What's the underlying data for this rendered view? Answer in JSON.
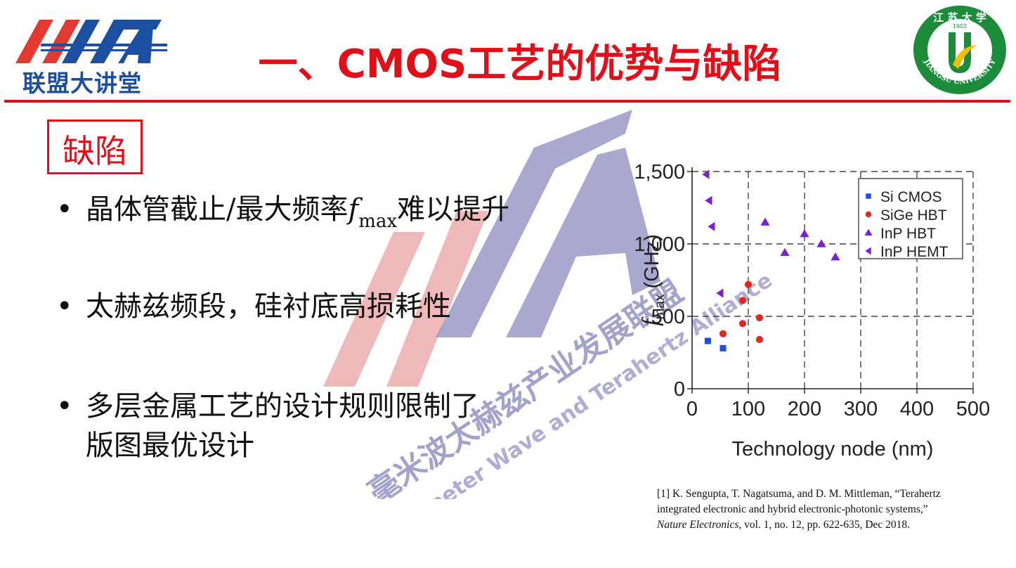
{
  "header": {
    "title": "一、CMOS工艺的优势与缺陷",
    "logo_text": "联盟大讲堂",
    "seal_text": "JIANGSU UNIVERSITY",
    "seal_year": "1902",
    "seal_top_text": "江 苏 大 学"
  },
  "section": {
    "label": "缺陷"
  },
  "bullets": [
    {
      "symbol": "•",
      "text_before": "晶体管截止/最大频率",
      "f": "f",
      "sub": "max",
      "text_after": "难以提升"
    },
    {
      "symbol": "•",
      "text": "太赫兹频段，硅衬底高损耗性"
    },
    {
      "symbol": "•",
      "line1": "多层金属工艺的设计规则限制了",
      "line2": "版图最优设计"
    }
  ],
  "watermark": {
    "cn": "毫米波太赫兹产业发展联盟",
    "en": "Millimeter Wave and Terahertz Alliance"
  },
  "colors": {
    "accent_red": "#e0101a",
    "brand_blue": "#1d4fa0",
    "seal_green": "#1c8c3c",
    "marker_purple": "#7a22cf"
  },
  "chart_data": {
    "type": "scatter",
    "xlabel": "Technology node (nm)",
    "ylabel_f": "f",
    "ylabel_sub": "max",
    "ylabel_unit": "(GHz)",
    "xlim": [
      0,
      500
    ],
    "ylim": [
      0,
      1500
    ],
    "xticks": [
      0,
      100,
      200,
      300,
      400,
      500
    ],
    "yticks": [
      0,
      500,
      1000,
      1500
    ],
    "ytick_labels": [
      "0",
      "500",
      "1,000",
      "1,500"
    ],
    "grid": "dashed",
    "legend_position": "top-right",
    "series": [
      {
        "name": "Si CMOS",
        "marker": "square",
        "color": "#1f4fe0",
        "points": [
          [
            28,
            330
          ],
          [
            55,
            280
          ]
        ]
      },
      {
        "name": "SiGe HBT",
        "marker": "circle",
        "color": "#e0291e",
        "points": [
          [
            55,
            380
          ],
          [
            90,
            450
          ],
          [
            90,
            610
          ],
          [
            100,
            720
          ],
          [
            120,
            490
          ],
          [
            120,
            340
          ]
        ]
      },
      {
        "name": "InP HBT",
        "marker": "triangle-up",
        "color": "#7a22cf",
        "points": [
          [
            130,
            1150
          ],
          [
            165,
            940
          ],
          [
            200,
            1070
          ],
          [
            230,
            1000
          ],
          [
            255,
            910
          ]
        ]
      },
      {
        "name": "InP HEMT",
        "marker": "triangle-left",
        "color": "#7a22cf",
        "points": [
          [
            25,
            1480
          ],
          [
            30,
            1300
          ],
          [
            35,
            1120
          ],
          [
            50,
            660
          ]
        ]
      }
    ]
  },
  "reference": {
    "line1": "[1] K. Sengupta, T. Nagatsuma, and D. M. Mittleman, “Terahertz",
    "line2": "integrated electronic and hybrid electronic-photonic systems,”",
    "journal": "Nature Electronics",
    "line3_rest": ", vol.  1, no.  12, pp.  622-635, Dec 2018."
  }
}
